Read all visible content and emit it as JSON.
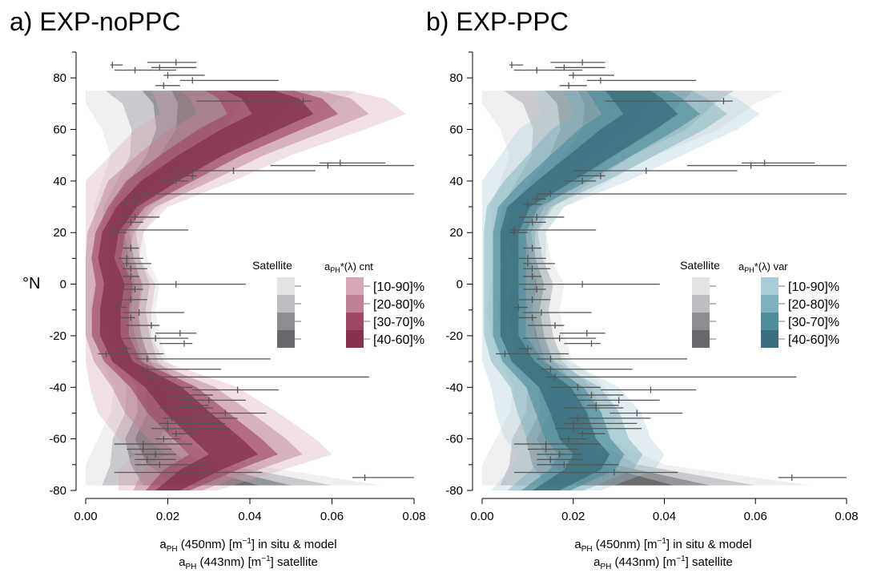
{
  "figure": {
    "panels": [
      {
        "title": "a) EXP-noPPC",
        "legend": {
          "satellite_title": "Satellite",
          "model_title_main": "a",
          "model_title_sub": "PH",
          "model_title_rest": "*(λ) cnt",
          "bands": [
            "[10-90]%",
            "[20-80]%",
            "[30-70]%",
            "[40-60]%"
          ]
        }
      },
      {
        "title": "b) EXP-PPC",
        "legend": {
          "satellite_title": "Satellite",
          "model_title_main": "a",
          "model_title_sub": "PH",
          "model_title_rest": "*(λ) var",
          "bands": [
            "[10-90]%",
            "[20-80]%",
            "[30-70]%",
            "[40-60]%"
          ]
        }
      }
    ],
    "ylabel": "°N",
    "xlabel_line1": {
      "main": "a",
      "sub": "PH",
      "rest": " (450nm) [m",
      "sup": "−1",
      "tail": "] in situ & model"
    },
    "xlabel_line2": {
      "main": "a",
      "sub": "PH",
      "rest": " (443nm) [m",
      "sup": "−1",
      "tail": "] satellite"
    }
  },
  "colors": {
    "satellite_bands": [
      "#e3e3e6",
      "#bcbdc0",
      "#8c8d90",
      "#68686c"
    ],
    "noPPC_bands": [
      "#d7a7b7",
      "#c08197",
      "#9e4766",
      "#86324f"
    ],
    "PPC_bands": [
      "#a9cdd6",
      "#7fb0bc",
      "#4f8d9c",
      "#3b6e7c"
    ],
    "insitu_line": "#555555"
  },
  "chart_data": [
    {
      "type": "area",
      "title": "a) EXP-noPPC",
      "xlabel": "aPH (450nm) [m−1] in situ & model / aPH (443nm) [m−1] satellite",
      "ylabel": "°N",
      "xlim": [
        0,
        0.08
      ],
      "ylim": [
        -80,
        90
      ],
      "x_ticks": [
        "0.00",
        "0.02",
        "0.04",
        "0.06",
        "0.08"
      ],
      "y_ticks": [
        "-80",
        "-60",
        "-40",
        "-20",
        "0",
        "20",
        "40",
        "60",
        "80"
      ],
      "legend_placement": "center-right",
      "series": [
        {
          "name": "Satellite",
          "lat": [
            -78,
            -70,
            -60,
            -50,
            -40,
            -30,
            -20,
            -10,
            0,
            10,
            20,
            30,
            40,
            50,
            60,
            70,
            75
          ],
          "median": [
            0.032,
            0.02,
            0.015,
            0.018,
            0.017,
            0.012,
            0.01,
            0.009,
            0.01,
            0.009,
            0.008,
            0.01,
            0.016,
            0.022,
            0.028,
            0.03,
            0.03
          ],
          "spread": [
            0.02,
            0.01,
            0.006,
            0.006,
            0.005,
            0.004,
            0.004,
            0.004,
            0.004,
            0.003,
            0.003,
            0.004,
            0.006,
            0.008,
            0.012,
            0.015,
            0.018
          ]
        },
        {
          "name": "aPH*(λ) cnt",
          "lat": [
            -80,
            -72,
            -66,
            -60,
            -50,
            -40,
            -30,
            -20,
            -10,
            0,
            10,
            20,
            30,
            40,
            50,
            60,
            66,
            72,
            75
          ],
          "median": [
            0.02,
            0.028,
            0.036,
            0.032,
            0.025,
            0.019,
            0.009,
            0.006,
            0.006,
            0.007,
            0.005,
            0.006,
            0.01,
            0.018,
            0.028,
            0.04,
            0.048,
            0.045,
            0.04
          ],
          "spread": [
            0.006,
            0.01,
            0.012,
            0.012,
            0.011,
            0.009,
            0.005,
            0.005,
            0.005,
            0.005,
            0.004,
            0.004,
            0.005,
            0.009,
            0.011,
            0.014,
            0.015,
            0.014,
            0.012
          ]
        }
      ]
    },
    {
      "type": "area",
      "title": "b) EXP-PPC",
      "xlabel": "aPH (450nm) [m−1] in situ & model / aPH (443nm) [m−1] satellite",
      "ylabel": "°N",
      "xlim": [
        0,
        0.08
      ],
      "ylim": [
        -80,
        90
      ],
      "x_ticks": [
        "0.00",
        "0.02",
        "0.04",
        "0.06",
        "0.08"
      ],
      "y_ticks": [
        "-80",
        "-60",
        "-40",
        "-20",
        "0",
        "20",
        "40",
        "60",
        "80"
      ],
      "legend_placement": "center-right",
      "series": [
        {
          "name": "Satellite",
          "lat": [
            -78,
            -70,
            -60,
            -50,
            -40,
            -30,
            -20,
            -10,
            0,
            10,
            20,
            30,
            40,
            50,
            60,
            70,
            75
          ],
          "median": [
            0.032,
            0.02,
            0.015,
            0.018,
            0.017,
            0.012,
            0.01,
            0.009,
            0.01,
            0.009,
            0.008,
            0.01,
            0.016,
            0.022,
            0.028,
            0.03,
            0.03
          ],
          "spread": [
            0.02,
            0.01,
            0.006,
            0.006,
            0.005,
            0.004,
            0.004,
            0.004,
            0.004,
            0.003,
            0.003,
            0.004,
            0.006,
            0.008,
            0.012,
            0.015,
            0.018
          ]
        },
        {
          "name": "aPH*(λ) var",
          "lat": [
            -80,
            -72,
            -66,
            -60,
            -50,
            -40,
            -30,
            -20,
            -10,
            0,
            10,
            20,
            30,
            40,
            50,
            60,
            66,
            72,
            75
          ],
          "median": [
            0.014,
            0.022,
            0.024,
            0.021,
            0.019,
            0.016,
            0.009,
            0.006,
            0.006,
            0.006,
            0.006,
            0.006,
            0.008,
            0.016,
            0.024,
            0.032,
            0.037,
            0.034,
            0.032
          ],
          "spread": [
            0.006,
            0.008,
            0.008,
            0.008,
            0.008,
            0.007,
            0.005,
            0.004,
            0.004,
            0.004,
            0.004,
            0.004,
            0.005,
            0.008,
            0.01,
            0.012,
            0.012,
            0.011,
            0.01
          ]
        }
      ],
      "insitu": [
        [
          86,
          0.015,
          0.022,
          0.027
        ],
        [
          85,
          0.006,
          0.0065,
          0.009
        ],
        [
          84,
          0.016,
          0.018,
          0.027
        ],
        [
          83,
          0.007,
          0.012,
          0.022
        ],
        [
          81,
          0.019,
          0.02,
          0.029
        ],
        [
          79,
          0.023,
          0.026,
          0.047
        ],
        [
          77,
          0.017,
          0.019,
          0.023
        ],
        [
          71,
          0.027,
          0.053,
          0.055
        ],
        [
          46,
          0.045,
          0.059,
          0.08
        ],
        [
          47,
          0.057,
          0.062,
          0.073
        ],
        [
          44,
          0.02,
          0.036,
          0.056
        ],
        [
          42,
          0.021,
          0.026,
          0.027
        ],
        [
          40,
          0.018,
          0.022,
          0.025
        ],
        [
          35,
          0.012,
          0.015,
          0.08
        ],
        [
          33,
          0.011,
          0.012,
          0.014
        ],
        [
          31,
          0.009,
          0.01,
          0.013
        ],
        [
          26,
          0.008,
          0.012,
          0.018
        ],
        [
          24,
          0.009,
          0.011,
          0.014
        ],
        [
          21,
          0.006,
          0.007,
          0.025
        ],
        [
          20,
          0.006,
          0.007,
          0.01
        ],
        [
          14,
          0.009,
          0.011,
          0.013
        ],
        [
          10,
          0.008,
          0.01,
          0.014
        ],
        [
          8,
          0.009,
          0.01,
          0.016
        ],
        [
          6,
          0.009,
          0.011,
          0.015
        ],
        [
          3,
          0.009,
          0.011,
          0.013
        ],
        [
          0,
          0.008,
          0.022,
          0.039
        ],
        [
          -2,
          0.009,
          0.012,
          0.014
        ],
        [
          -6,
          0.008,
          0.011,
          0.015
        ],
        [
          -9,
          0.007,
          0.008,
          0.01
        ],
        [
          -11,
          0.009,
          0.013,
          0.024
        ],
        [
          -13,
          0.008,
          0.011,
          0.012
        ],
        [
          -16,
          0.01,
          0.016,
          0.018
        ],
        [
          -19,
          0.017,
          0.023,
          0.027
        ],
        [
          -21,
          0.009,
          0.017,
          0.025
        ],
        [
          -23,
          0.018,
          0.024,
          0.026
        ],
        [
          -25,
          0.008,
          0.01,
          0.011
        ],
        [
          -27,
          0.003,
          0.005,
          0.019
        ],
        [
          -29,
          0.012,
          0.015,
          0.045
        ],
        [
          -33,
          0.013,
          0.015,
          0.033
        ],
        [
          -36,
          0.014,
          0.016,
          0.069
        ],
        [
          -40,
          0.015,
          0.021,
          0.026
        ],
        [
          -41,
          0.026,
          0.037,
          0.047
        ],
        [
          -43,
          0.02,
          0.024,
          0.031
        ],
        [
          -45,
          0.021,
          0.03,
          0.039
        ],
        [
          -47,
          0.023,
          0.025,
          0.03
        ],
        [
          -48,
          0.018,
          0.025,
          0.031
        ],
        [
          -50,
          0.028,
          0.034,
          0.044
        ],
        [
          -52,
          0.019,
          0.021,
          0.037
        ],
        [
          -54,
          0.018,
          0.02,
          0.034
        ],
        [
          -56,
          0.016,
          0.02,
          0.035
        ],
        [
          -58,
          0.021,
          0.022,
          0.027
        ],
        [
          -60,
          0.017,
          0.019,
          0.023
        ],
        [
          -62,
          0.007,
          0.014,
          0.026
        ],
        [
          -64,
          0.01,
          0.014,
          0.021
        ],
        [
          -66,
          0.012,
          0.017,
          0.022
        ],
        [
          -68,
          0.012,
          0.015,
          0.022
        ],
        [
          -70,
          0.012,
          0.018,
          0.03
        ],
        [
          -73,
          0.007,
          0.029,
          0.043
        ],
        [
          -75,
          0.065,
          0.068,
          0.08
        ]
      ]
    }
  ]
}
